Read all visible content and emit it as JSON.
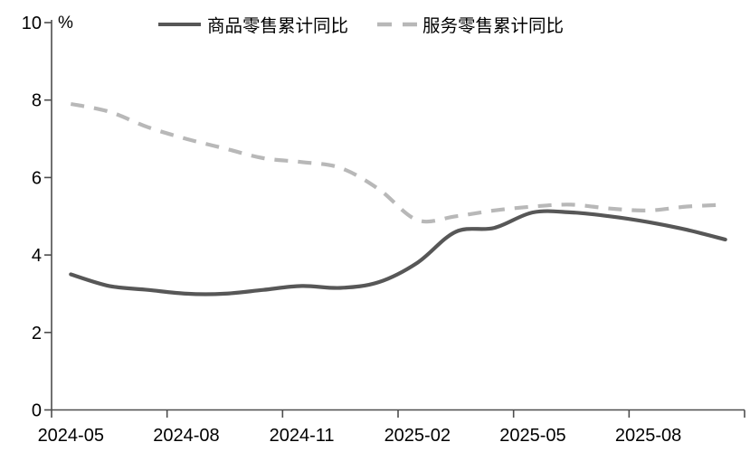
{
  "chart_data": {
    "type": "line",
    "title": "",
    "unit_label": "%",
    "grid": false,
    "legend_position": "top-center",
    "ylim": [
      0,
      10
    ],
    "yticks": [
      0,
      2,
      4,
      6,
      8,
      10
    ],
    "x": [
      "2024-05",
      "2024-06",
      "2024-07",
      "2024-08",
      "2024-09",
      "2024-10",
      "2024-11",
      "2024-12",
      "2025-01",
      "2025-02",
      "2025-03",
      "2025-04",
      "2025-05",
      "2025-06",
      "2025-07",
      "2025-08",
      "2025-09",
      "2025-10"
    ],
    "x_tick_labels": [
      "2024-05",
      "2024-08",
      "2024-11",
      "2025-02",
      "2025-05",
      "2025-08"
    ],
    "x_tick_every_n_months": 3,
    "series": [
      {
        "name": "商品零售累计同比",
        "style": "solid",
        "color": "#575757",
        "values": [
          3.5,
          3.2,
          3.1,
          3.0,
          3.0,
          3.1,
          3.2,
          3.15,
          3.3,
          3.8,
          4.6,
          4.7,
          5.1,
          5.1,
          5.0,
          4.85,
          4.65,
          4.4
        ]
      },
      {
        "name": "服务零售累计同比",
        "style": "dashed",
        "color": "#b8b8b8",
        "values": [
          7.9,
          7.7,
          7.3,
          7.0,
          6.75,
          6.5,
          6.4,
          6.25,
          5.7,
          4.9,
          5.0,
          5.15,
          5.25,
          5.3,
          5.2,
          5.15,
          5.25,
          5.3
        ]
      }
    ],
    "axis_color": "#4d4d4d",
    "text_color": "#000000"
  }
}
